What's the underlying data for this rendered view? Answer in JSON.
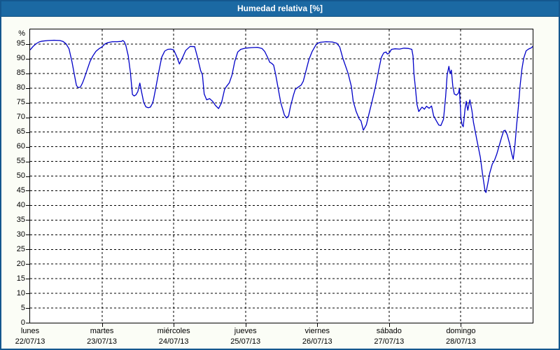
{
  "window": {
    "title": "Humedad relativa [%]"
  },
  "colors": {
    "titlebar_bg": "#1b69a3",
    "window_border": "#14578e",
    "window_bg": "#fbfdf6",
    "plot_bg": "#ffffff",
    "grid": "#000000",
    "axis": "#000000",
    "series_line": "#0000c8",
    "title_text": "#ffffff",
    "tick_text": "#000000"
  },
  "chart_data": {
    "type": "line",
    "title": "Humedad relativa [%]",
    "ylabel": "%",
    "xlabel": "",
    "ylim": [
      0,
      100
    ],
    "yticks": [
      0,
      5,
      10,
      15,
      20,
      25,
      30,
      35,
      40,
      45,
      50,
      55,
      60,
      65,
      70,
      75,
      80,
      85,
      90,
      95
    ],
    "grid": "dashed",
    "legend_position": "none",
    "x_range_hours": [
      0,
      168
    ],
    "x_days": [
      {
        "name": "lunes",
        "date": "22/07/13"
      },
      {
        "name": "martes",
        "date": "23/07/13"
      },
      {
        "name": "miércoles",
        "date": "24/07/13"
      },
      {
        "name": "jueves",
        "date": "25/07/13"
      },
      {
        "name": "viernes",
        "date": "26/07/13"
      },
      {
        "name": "sábado",
        "date": "27/07/13"
      },
      {
        "name": "domingo",
        "date": "28/07/13"
      }
    ],
    "series": [
      {
        "name": "Humedad relativa [%]",
        "color": "#0000c8",
        "points": [
          [
            0,
            93
          ],
          [
            1,
            94.2
          ],
          [
            2,
            95.1
          ],
          [
            3,
            95.7
          ],
          [
            4,
            96
          ],
          [
            6,
            96.2
          ],
          [
            8,
            96.3
          ],
          [
            10,
            96.2
          ],
          [
            11,
            95.9
          ],
          [
            12,
            95.1
          ],
          [
            13,
            93.4
          ],
          [
            14,
            89
          ],
          [
            15,
            83.5
          ],
          [
            15.5,
            80.9
          ],
          [
            16,
            80.2
          ],
          [
            16.8,
            80.3
          ],
          [
            17.5,
            81.7
          ],
          [
            18,
            83
          ],
          [
            19,
            86
          ],
          [
            20,
            89
          ],
          [
            21,
            91
          ],
          [
            22,
            92.5
          ],
          [
            23,
            93.4
          ],
          [
            24,
            94
          ],
          [
            25,
            95
          ],
          [
            26,
            95.5
          ],
          [
            27.5,
            95.8
          ],
          [
            29,
            95.8
          ],
          [
            30.5,
            95.9
          ],
          [
            31,
            96.2
          ],
          [
            31.5,
            95.8
          ],
          [
            32,
            94.5
          ],
          [
            32.8,
            91
          ],
          [
            33.5,
            85.5
          ],
          [
            34.2,
            77.8
          ],
          [
            34.8,
            77.3
          ],
          [
            35.4,
            77.7
          ],
          [
            36,
            78.8
          ],
          [
            36.7,
            81.7
          ],
          [
            37.3,
            78.5
          ],
          [
            38,
            75
          ],
          [
            38.7,
            73.6
          ],
          [
            39.5,
            73.3
          ],
          [
            40.2,
            73.5
          ],
          [
            40.8,
            74.6
          ],
          [
            41.2,
            75.8
          ],
          [
            42,
            80
          ],
          [
            43,
            85.5
          ],
          [
            44,
            90.5
          ],
          [
            45,
            92.6
          ],
          [
            46,
            93.2
          ],
          [
            47,
            93.3
          ],
          [
            48,
            93
          ],
          [
            49,
            90.8
          ],
          [
            49.9,
            88.2
          ],
          [
            51,
            90.5
          ],
          [
            52,
            92.8
          ],
          [
            53.5,
            94.2
          ],
          [
            55,
            94.1
          ],
          [
            56,
            90.3
          ],
          [
            57,
            86
          ],
          [
            57.6,
            84.5
          ],
          [
            58.2,
            78
          ],
          [
            59,
            76
          ],
          [
            60,
            76.4
          ],
          [
            61,
            75.5
          ],
          [
            62,
            74
          ],
          [
            63,
            73
          ],
          [
            64,
            75
          ],
          [
            65,
            79.5
          ],
          [
            65.6,
            80.5
          ],
          [
            66.6,
            81.8
          ],
          [
            67.5,
            84.5
          ],
          [
            68.4,
            89
          ],
          [
            69.4,
            92.3
          ],
          [
            70.4,
            93.2
          ],
          [
            72,
            93.6
          ],
          [
            74,
            93.8
          ],
          [
            76,
            93.9
          ],
          [
            77.5,
            93.5
          ],
          [
            78.4,
            92.5
          ],
          [
            79.6,
            90
          ],
          [
            80.1,
            88.8
          ],
          [
            80.8,
            88.4
          ],
          [
            81.4,
            87.8
          ],
          [
            82,
            85
          ],
          [
            82.9,
            80
          ],
          [
            83.8,
            75
          ],
          [
            85,
            70.8
          ],
          [
            85.7,
            69.8
          ],
          [
            86.4,
            70.5
          ],
          [
            87,
            73.5
          ],
          [
            88,
            77.5
          ],
          [
            88.6,
            79.5
          ],
          [
            89.6,
            80.3
          ],
          [
            90.6,
            81
          ],
          [
            91.3,
            82.3
          ],
          [
            92,
            85
          ],
          [
            93.2,
            89.7
          ],
          [
            94.3,
            92.5
          ],
          [
            95.5,
            94.6
          ],
          [
            96,
            95.2
          ],
          [
            97,
            95.6
          ],
          [
            99,
            95.8
          ],
          [
            101,
            95.7
          ],
          [
            102.5,
            95.3
          ],
          [
            103.5,
            94
          ],
          [
            104.6,
            90
          ],
          [
            106.3,
            85
          ],
          [
            107.4,
            80.5
          ],
          [
            108,
            75.5
          ],
          [
            109,
            72
          ],
          [
            110,
            69.5
          ],
          [
            110.6,
            68.8
          ],
          [
            111.4,
            65.6
          ],
          [
            112.4,
            67.5
          ],
          [
            113,
            70
          ],
          [
            114.2,
            75
          ],
          [
            115.4,
            80.3
          ],
          [
            116.5,
            86
          ],
          [
            117.4,
            90.4
          ],
          [
            118.2,
            92
          ],
          [
            119,
            92.3
          ],
          [
            119.4,
            91.6
          ],
          [
            120,
            91.9
          ],
          [
            120.8,
            93.2
          ],
          [
            122,
            93.4
          ],
          [
            123.5,
            93.3
          ],
          [
            125,
            93.6
          ],
          [
            126.5,
            93.5
          ],
          [
            127.6,
            93.2
          ],
          [
            128,
            91
          ],
          [
            128.3,
            85
          ],
          [
            128.8,
            80
          ],
          [
            129.3,
            74.5
          ],
          [
            129.9,
            72
          ],
          [
            131,
            73.5
          ],
          [
            131.8,
            72.8
          ],
          [
            132.5,
            73.8
          ],
          [
            133.4,
            73.1
          ],
          [
            134.2,
            73.9
          ],
          [
            134.9,
            70.5
          ],
          [
            135.8,
            68.8
          ],
          [
            136.6,
            67.4
          ],
          [
            137.3,
            67.2
          ],
          [
            138.2,
            69.4
          ],
          [
            138.9,
            77
          ],
          [
            139.4,
            84.5
          ],
          [
            140,
            87.4
          ],
          [
            140.4,
            84.9
          ],
          [
            140.8,
            86.1
          ],
          [
            141.3,
            80.6
          ],
          [
            141.8,
            78
          ],
          [
            142.5,
            77.6
          ],
          [
            143.2,
            78.3
          ],
          [
            143.5,
            79.8
          ],
          [
            143.8,
            74
          ],
          [
            144,
            70
          ],
          [
            144.4,
            67.5
          ],
          [
            144.8,
            66.8
          ],
          [
            145.4,
            73
          ],
          [
            145.8,
            75.5
          ],
          [
            146.3,
            72.4
          ],
          [
            147,
            76
          ],
          [
            147.7,
            72.3
          ],
          [
            148.2,
            68.3
          ],
          [
            149.4,
            62
          ],
          [
            150.5,
            56.4
          ],
          [
            151.2,
            50.9
          ],
          [
            152.1,
            44.8
          ],
          [
            152.4,
            44.4
          ],
          [
            153,
            47.5
          ],
          [
            153.6,
            50.9
          ],
          [
            154.5,
            54.1
          ],
          [
            155.2,
            55.3
          ],
          [
            156,
            57.5
          ],
          [
            156.8,
            60.3
          ],
          [
            157.6,
            63.2
          ],
          [
            158.3,
            65.4
          ],
          [
            158.8,
            65.6
          ],
          [
            159.5,
            64
          ],
          [
            160.3,
            61
          ],
          [
            161,
            57.5
          ],
          [
            161.5,
            55.7
          ],
          [
            162.1,
            61
          ],
          [
            162.6,
            67
          ],
          [
            163.2,
            73.5
          ],
          [
            163.8,
            81
          ],
          [
            164.4,
            86.5
          ],
          [
            165,
            90.2
          ],
          [
            165.8,
            92.7
          ],
          [
            166.6,
            93.3
          ],
          [
            167.5,
            93.7
          ],
          [
            168,
            94.2
          ]
        ]
      }
    ]
  }
}
